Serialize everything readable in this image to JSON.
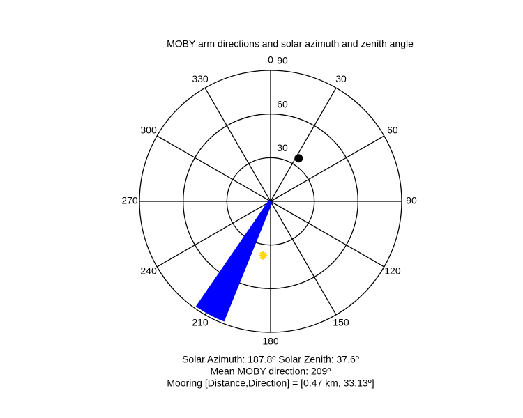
{
  "chart_data": {
    "type": "polar",
    "title": "MOBY arm directions and solar azimuth and zenith angle",
    "rlim": [
      0,
      90
    ],
    "rticks": [
      30,
      60,
      90
    ],
    "theta_ticks": [
      0,
      30,
      60,
      90,
      120,
      150,
      180,
      210,
      240,
      270,
      300,
      330
    ],
    "series": [
      {
        "marker": "ray",
        "color": "#0000ff",
        "theta": [
          202,
          203.5,
          205,
          206.5,
          208,
          209.5,
          211,
          212.5,
          214,
          214.5
        ],
        "r": [
          88.5,
          88.5,
          88.5,
          88.5,
          88.5,
          88.5,
          88.5,
          88.5,
          88.5,
          88.5
        ]
      },
      {
        "marker": "dot",
        "color": "#000000",
        "theta": [
          33.13
        ],
        "r": [
          35.3
        ]
      },
      {
        "marker": "star",
        "color": "#ffd700",
        "theta": [
          187.8
        ],
        "r": [
          37.6
        ]
      }
    ],
    "annotations": [
      "Solar Azimuth: 187.8º   Solar Zenith: 37.6º",
      "Mean MOBY direction: 209º",
      "Mooring [Distance,Direction] = [0.47 km, 33.13º]"
    ]
  }
}
